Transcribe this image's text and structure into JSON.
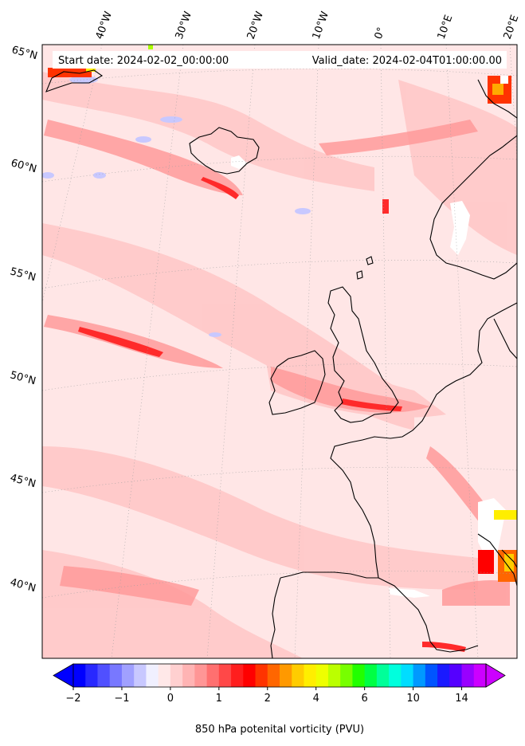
{
  "header": {
    "start_date": "Start date: 2024-02-02_00:00:00",
    "valid_date": "Valid_date: 2024-02-04T01:00:00.00"
  },
  "lon_labels": [
    "40°W",
    "30°W",
    "20°W",
    "10°W",
    "0°",
    "10°E",
    "20°E"
  ],
  "lat_labels": [
    "65°N",
    "60°N",
    "55°N",
    "50°N",
    "45°N",
    "40°N"
  ],
  "colorbar": {
    "label": "850 hPa potenital vorticity (PVU)",
    "tick_labels": [
      "−2",
      "−1",
      "0",
      "1",
      "2",
      "4",
      "6",
      "10",
      "14"
    ],
    "colors": [
      "#0000ff",
      "#2828ff",
      "#5050ff",
      "#7878ff",
      "#a0a0ff",
      "#c8c8ff",
      "#f0f0ff",
      "#ffe8e8",
      "#ffd0d0",
      "#ffb4b4",
      "#ff9696",
      "#ff7070",
      "#ff4848",
      "#ff1e1e",
      "#ff0000",
      "#ff3300",
      "#ff6600",
      "#ff9900",
      "#ffcc00",
      "#ffee00",
      "#eeff00",
      "#bbff00",
      "#77ff00",
      "#22ff00",
      "#00ff44",
      "#00ff99",
      "#00ffdd",
      "#00ddff",
      "#0099ff",
      "#0055ff",
      "#1a1aff",
      "#5500ff",
      "#9900ff",
      "#cc00ff"
    ],
    "extend": "both"
  },
  "map": {
    "projection": "lambert-conformal",
    "features": [
      "coastlines",
      "gridlines"
    ],
    "field": "850 hPa potential vorticity",
    "background_color": "#ffe6e6"
  }
}
